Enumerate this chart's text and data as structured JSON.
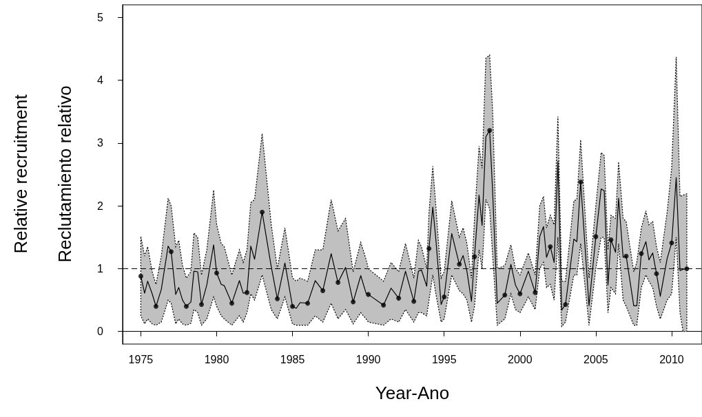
{
  "chart_data": {
    "type": "line",
    "xlabel": "Year-Ano",
    "ylabel": "Relative recruitment\nReclutamiento relativo",
    "xlim": [
      1973.8,
      2012
    ],
    "xticks": [
      1975,
      1980,
      1985,
      1990,
      1995,
      2000,
      2005,
      2010
    ],
    "ylim": [
      -0.2,
      5.2
    ],
    "yticks": [
      0,
      1,
      2,
      3,
      4,
      5
    ],
    "grid": false,
    "ref_lines": [
      {
        "axis": "y",
        "value": 1,
        "line_style": "dashed",
        "color": "#000000"
      }
    ],
    "series": [
      {
        "color": "#000000",
        "marker": "none",
        "line_style": "solid",
        "x": [
          1975.0,
          1975.25,
          1975.45,
          1975.75,
          1976.0,
          1976.35,
          1976.8,
          1977.0,
          1977.3,
          1977.5,
          1977.75,
          1978.0,
          1978.3,
          1978.5,
          1978.75,
          1979.0,
          1979.35,
          1979.8,
          1980.0,
          1980.3,
          1980.5,
          1981.0,
          1981.5,
          1981.75,
          1982.0,
          1982.25,
          1982.5,
          1983.0,
          1983.6,
          1984.0,
          1984.5,
          1985.0,
          1985.25,
          1985.5,
          1986.0,
          1986.5,
          1987.0,
          1987.55,
          1988.0,
          1988.5,
          1989.0,
          1989.5,
          1989.85,
          1990.0,
          1991.0,
          1991.5,
          1992.0,
          1992.45,
          1993.0,
          1993.3,
          1993.5,
          1993.85,
          1994.0,
          1994.25,
          1994.45,
          1994.8,
          1995.0,
          1995.5,
          1996.0,
          1996.25,
          1996.5,
          1996.8,
          1997.0,
          1997.3,
          1997.5,
          1997.75,
          1998.0,
          1998.2,
          1998.5,
          1999.0,
          1999.4,
          1999.7,
          2000.0,
          2000.55,
          2001.0,
          2001.3,
          2001.55,
          2001.75,
          2002.0,
          2002.25,
          2002.5,
          2002.75,
          2003.0,
          2003.55,
          2003.75,
          2004.0,
          2004.55,
          2005.0,
          2005.35,
          2005.55,
          2005.8,
          2006.0,
          2006.3,
          2006.5,
          2006.8,
          2007.0,
          2007.5,
          2007.7,
          2008.0,
          2008.3,
          2008.5,
          2008.75,
          2009.0,
          2009.25,
          2009.7,
          2010.0,
          2010.3,
          2010.55,
          2010.75,
          2011.0
        ],
        "values": [
          0.88,
          0.61,
          0.8,
          0.6,
          0.4,
          0.67,
          1.36,
          1.27,
          0.59,
          0.7,
          0.5,
          0.4,
          0.47,
          0.96,
          0.95,
          0.43,
          0.74,
          1.38,
          0.93,
          0.75,
          0.73,
          0.45,
          0.81,
          0.61,
          0.62,
          1.36,
          1.15,
          1.9,
          1.03,
          0.52,
          1.09,
          0.4,
          0.37,
          0.46,
          0.45,
          0.81,
          0.65,
          1.24,
          0.78,
          1.02,
          0.47,
          0.89,
          0.61,
          0.59,
          0.42,
          0.69,
          0.53,
          0.96,
          0.48,
          0.96,
          0.98,
          0.72,
          1.32,
          1.98,
          1.47,
          0.43,
          0.55,
          1.56,
          1.07,
          1.21,
          0.96,
          0.48,
          1.19,
          2.17,
          1.69,
          3.1,
          3.2,
          2.2,
          0.45,
          0.58,
          1.07,
          0.74,
          0.6,
          0.96,
          0.62,
          1.51,
          1.67,
          1.18,
          1.35,
          1.1,
          2.71,
          0.34,
          0.43,
          1.47,
          1.43,
          2.38,
          0.41,
          1.51,
          2.27,
          2.24,
          0.74,
          1.46,
          1.26,
          2.12,
          1.18,
          1.2,
          0.41,
          0.41,
          1.24,
          1.43,
          1.14,
          1.25,
          0.92,
          0.56,
          1.16,
          1.41,
          2.45,
          0.97,
          0.99,
          1.0
        ],
        "lower": [
          0.25,
          0.12,
          0.2,
          0.12,
          0.1,
          0.15,
          0.5,
          0.45,
          0.12,
          0.2,
          0.12,
          0.1,
          0.13,
          0.35,
          0.3,
          0.1,
          0.2,
          0.55,
          0.4,
          0.25,
          0.2,
          0.1,
          0.25,
          0.15,
          0.3,
          0.6,
          0.5,
          0.9,
          0.35,
          0.2,
          0.55,
          0.12,
          0.1,
          0.1,
          0.1,
          0.25,
          0.15,
          0.45,
          0.2,
          0.35,
          0.12,
          0.3,
          0.2,
          0.15,
          0.1,
          0.2,
          0.15,
          0.35,
          0.15,
          0.3,
          0.3,
          0.25,
          0.5,
          0.9,
          0.6,
          0.15,
          0.2,
          0.9,
          0.65,
          0.6,
          0.5,
          0.15,
          0.4,
          1.3,
          1.0,
          2.1,
          1.95,
          1.2,
          0.1,
          0.2,
          0.6,
          0.35,
          0.3,
          0.55,
          0.35,
          1.0,
          1.1,
          0.7,
          0.75,
          0.5,
          1.5,
          0.08,
          0.15,
          0.9,
          0.9,
          1.4,
          0.1,
          1.0,
          1.5,
          1.5,
          0.3,
          0.7,
          0.6,
          1.4,
          0.5,
          0.4,
          0.1,
          0.1,
          0.7,
          0.9,
          0.8,
          0.7,
          0.4,
          0.2,
          0.5,
          0.6,
          1.5,
          0.3,
          0.0,
          0.0
        ],
        "upper": [
          1.51,
          1.2,
          1.35,
          0.95,
          0.75,
          1.2,
          2.12,
          2.0,
          1.35,
          1.45,
          1.05,
          0.85,
          0.95,
          1.57,
          1.5,
          0.9,
          1.3,
          2.25,
          1.7,
          1.4,
          1.35,
          0.9,
          1.3,
          1.1,
          1.3,
          2.05,
          2.1,
          3.15,
          1.7,
          1.0,
          1.65,
          0.85,
          0.8,
          0.85,
          0.8,
          1.3,
          1.3,
          2.1,
          1.6,
          1.8,
          0.95,
          1.42,
          1.15,
          1.0,
          0.8,
          1.1,
          0.95,
          1.4,
          0.85,
          1.45,
          1.35,
          1.0,
          1.9,
          2.63,
          2.0,
          0.85,
          0.95,
          2.08,
          1.5,
          1.65,
          1.4,
          0.85,
          1.8,
          2.95,
          2.6,
          4.35,
          4.4,
          3.5,
          1.0,
          1.05,
          1.38,
          1.0,
          0.9,
          1.25,
          0.9,
          2.0,
          2.15,
          1.65,
          1.85,
          1.7,
          3.42,
          0.8,
          0.8,
          2.08,
          2.1,
          3.05,
          0.85,
          2.0,
          2.85,
          2.8,
          1.3,
          1.85,
          1.8,
          2.7,
          1.8,
          1.75,
          0.95,
          1.1,
          1.65,
          1.92,
          1.7,
          1.75,
          1.35,
          1.1,
          1.9,
          2.6,
          4.37,
          2.15,
          2.17,
          2.19
        ]
      },
      {
        "type": "scatter",
        "color": "#000000",
        "marker": "circle",
        "x": [
          1975,
          1976,
          1977,
          1978,
          1979,
          1980,
          1981,
          1982,
          1983,
          1984,
          1985,
          1986,
          1987,
          1988,
          1989,
          1990,
          1991,
          1992,
          1993,
          1994,
          1995,
          1996,
          1997,
          1998,
          1999,
          2000,
          2001,
          2002,
          2003,
          2004,
          2005,
          2006,
          2007,
          2008,
          2009,
          2010,
          2011
        ],
        "values": [
          0.88,
          0.4,
          1.27,
          0.4,
          0.43,
          0.93,
          0.45,
          0.62,
          1.9,
          0.52,
          0.4,
          0.45,
          0.65,
          0.78,
          0.47,
          0.59,
          0.42,
          0.53,
          0.48,
          1.32,
          0.55,
          1.07,
          1.19,
          3.2,
          0.58,
          0.6,
          0.62,
          1.35,
          0.43,
          2.38,
          1.51,
          1.46,
          1.2,
          1.24,
          0.92,
          1.41,
          1.0
        ]
      }
    ]
  }
}
